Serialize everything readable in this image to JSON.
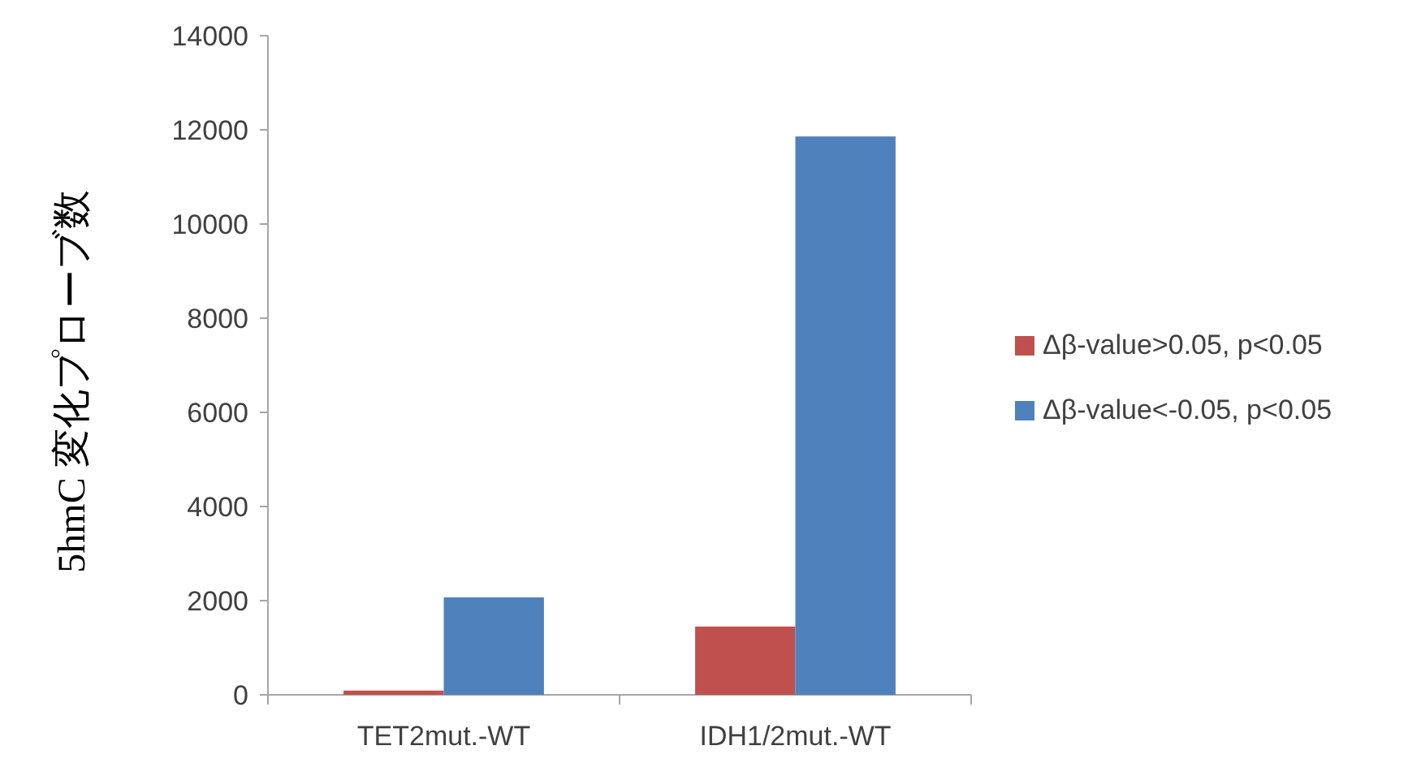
{
  "chart_data": {
    "type": "bar",
    "ylabel": "5hmC 変化プローブ数",
    "categories": [
      "TET2mut.-WT",
      "IDH1/2mut.-WT"
    ],
    "series": [
      {
        "name": "Δβ-value>0.05, p<0.05",
        "color": "#c0504d",
        "values": [
          90,
          1450
        ]
      },
      {
        "name": "Δβ-value<-0.05, p<0.05",
        "color": "#4f81bd",
        "values": [
          2070,
          11860
        ]
      }
    ],
    "ylim": [
      0,
      14000
    ],
    "yticks": [
      0,
      2000,
      4000,
      6000,
      8000,
      10000,
      12000,
      14000
    ],
    "grid": false,
    "legend": "right"
  }
}
